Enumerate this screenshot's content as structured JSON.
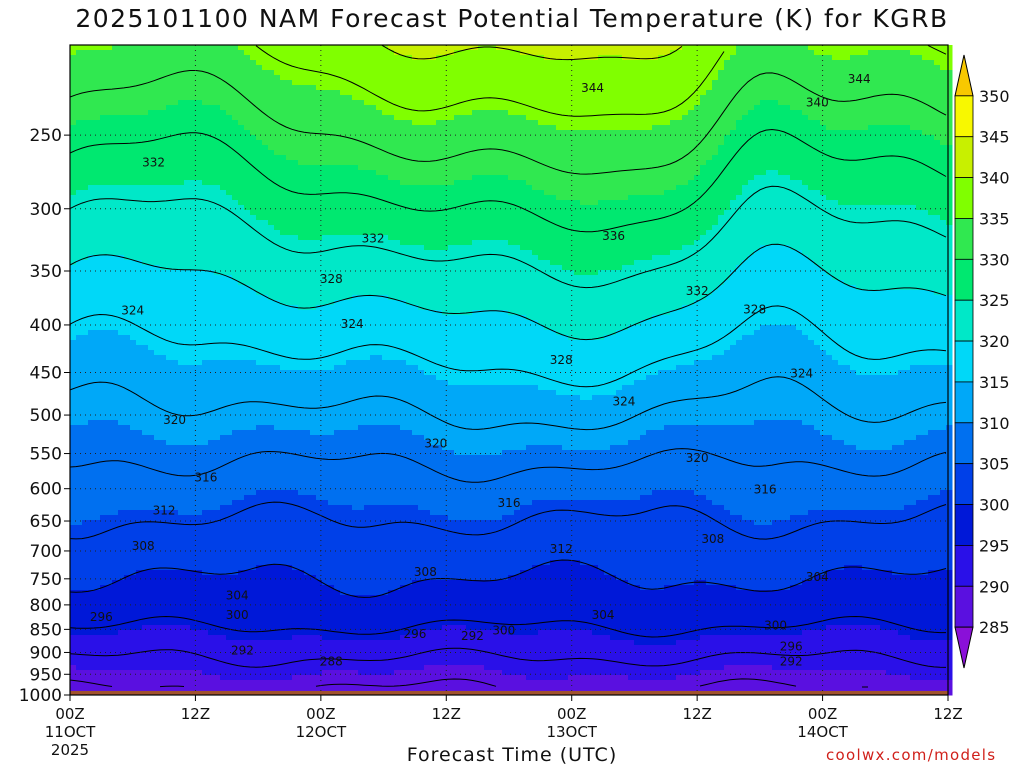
{
  "title": "2025101100 NAM Forecast Potential Temperature (K) for KGRB",
  "watermark": "coolwx.com/models",
  "chart_data": {
    "type": "heatmap",
    "title": "2025101100 NAM Forecast Potential Temperature (K) for KGRB",
    "xlabel": "Forecast Time (UTC)",
    "ylabel": "",
    "x_range_hours": [
      0,
      84
    ],
    "y_scale": "log pressure (hPa), inverted",
    "y_range_hPa": [
      1000,
      200
    ],
    "x_ticks": [
      {
        "hour": 0,
        "label": "00Z",
        "day": "11OCT",
        "year": "2025"
      },
      {
        "hour": 12,
        "label": "12Z",
        "day": "",
        "year": ""
      },
      {
        "hour": 24,
        "label": "00Z",
        "day": "12OCT",
        "year": ""
      },
      {
        "hour": 36,
        "label": "12Z",
        "day": "",
        "year": ""
      },
      {
        "hour": 48,
        "label": "00Z",
        "day": "13OCT",
        "year": ""
      },
      {
        "hour": 60,
        "label": "12Z",
        "day": "",
        "year": ""
      },
      {
        "hour": 72,
        "label": "00Z",
        "day": "14OCT",
        "year": ""
      },
      {
        "hour": 84,
        "label": "12Z",
        "day": "",
        "year": ""
      }
    ],
    "y_ticks": [
      250,
      300,
      350,
      400,
      450,
      500,
      550,
      600,
      650,
      700,
      750,
      800,
      850,
      900,
      950,
      1000
    ],
    "grid": "dotted",
    "colorbar": {
      "levels": [
        285,
        290,
        295,
        300,
        305,
        310,
        315,
        320,
        325,
        330,
        335,
        340,
        345,
        350
      ],
      "colors": [
        "#8a10d8",
        "#5a10e0",
        "#2a10e8",
        "#0018d8",
        "#0040e8",
        "#0070f0",
        "#00a8f8",
        "#00d8f8",
        "#00e8c8",
        "#00e870",
        "#30e850",
        "#80ff00",
        "#c8f000",
        "#f8f800",
        "#f8c800"
      ],
      "placement": "right"
    },
    "ground_color": "#a0522d",
    "contour_labels": [
      {
        "text": "344",
        "hour": 50.0,
        "hPa": 222
      },
      {
        "text": "344",
        "hour": 75.5,
        "hPa": 217
      },
      {
        "text": "340",
        "hour": 71.5,
        "hPa": 230
      },
      {
        "text": "332",
        "hour": 8.0,
        "hPa": 267
      },
      {
        "text": "336",
        "hour": 52.0,
        "hPa": 320
      },
      {
        "text": "332",
        "hour": 29.0,
        "hPa": 322
      },
      {
        "text": "328",
        "hour": 25.0,
        "hPa": 356
      },
      {
        "text": "332",
        "hour": 60.0,
        "hPa": 367
      },
      {
        "text": "324",
        "hour": 6.0,
        "hPa": 385
      },
      {
        "text": "328",
        "hour": 65.5,
        "hPa": 384
      },
      {
        "text": "324",
        "hour": 27.0,
        "hPa": 398
      },
      {
        "text": "328",
        "hour": 47.0,
        "hPa": 435
      },
      {
        "text": "324",
        "hour": 70.0,
        "hPa": 450
      },
      {
        "text": "324",
        "hour": 53.0,
        "hPa": 482
      },
      {
        "text": "320",
        "hour": 10.0,
        "hPa": 505
      },
      {
        "text": "320",
        "hour": 35.0,
        "hPa": 535
      },
      {
        "text": "320",
        "hour": 60.0,
        "hPa": 555
      },
      {
        "text": "316",
        "hour": 13.0,
        "hPa": 582
      },
      {
        "text": "316",
        "hour": 66.5,
        "hPa": 600
      },
      {
        "text": "316",
        "hour": 42.0,
        "hPa": 620
      },
      {
        "text": "312",
        "hour": 9.0,
        "hPa": 632
      },
      {
        "text": "308",
        "hour": 61.5,
        "hPa": 678
      },
      {
        "text": "308",
        "hour": 7.0,
        "hPa": 690
      },
      {
        "text": "312",
        "hour": 47.0,
        "hPa": 695
      },
      {
        "text": "308",
        "hour": 34.0,
        "hPa": 736
      },
      {
        "text": "304",
        "hour": 71.5,
        "hPa": 745
      },
      {
        "text": "304",
        "hour": 16.0,
        "hPa": 780
      },
      {
        "text": "300",
        "hour": 16.0,
        "hPa": 818
      },
      {
        "text": "304",
        "hour": 51.0,
        "hPa": 818
      },
      {
        "text": "296",
        "hour": 3.0,
        "hPa": 822
      },
      {
        "text": "300",
        "hour": 67.5,
        "hPa": 840
      },
      {
        "text": "300",
        "hour": 41.5,
        "hPa": 850
      },
      {
        "text": "296",
        "hour": 33.0,
        "hPa": 858
      },
      {
        "text": "292",
        "hour": 38.5,
        "hPa": 862
      },
      {
        "text": "296",
        "hour": 69.0,
        "hPa": 885
      },
      {
        "text": "292",
        "hour": 16.5,
        "hPa": 893
      },
      {
        "text": "292",
        "hour": 69.0,
        "hPa": 918
      },
      {
        "text": "288",
        "hour": 25.0,
        "hPa": 918
      }
    ]
  }
}
